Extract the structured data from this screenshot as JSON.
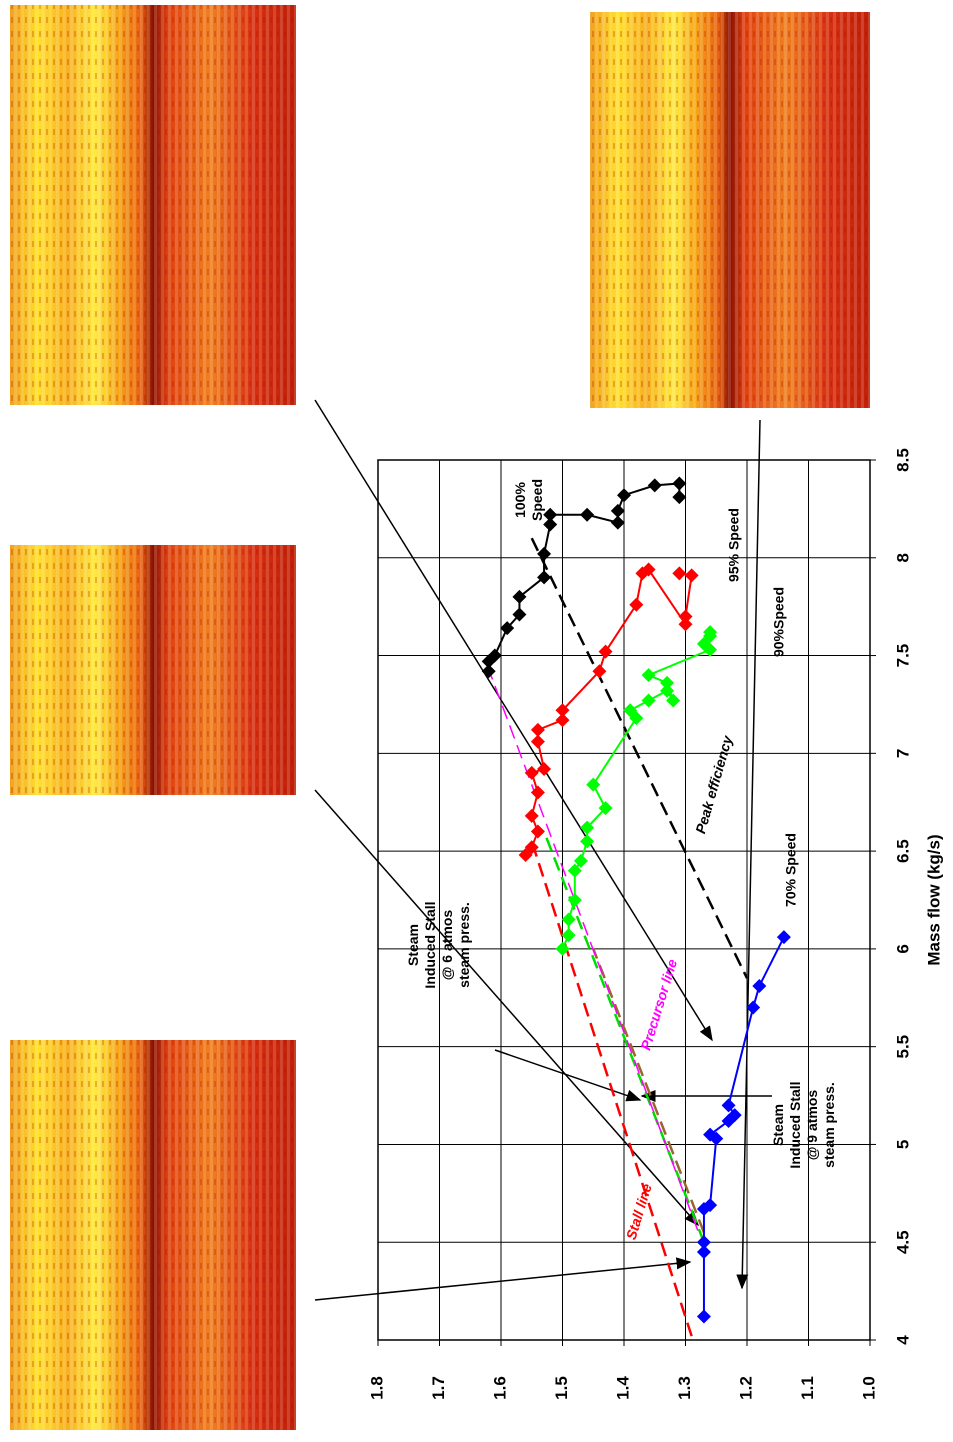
{
  "chart_data": {
    "type": "scatter",
    "x_label": "Mass flow (kg/s)",
    "xlim": [
      4,
      8.5
    ],
    "xticks": [
      4,
      4.5,
      5,
      5.5,
      6,
      6.5,
      7,
      7.5,
      8,
      8.5
    ],
    "ylim": [
      1.0,
      1.8
    ],
    "yticks": [
      {
        "value": 1.0,
        "label": "1.0"
      },
      1.1,
      1.2,
      1.3,
      1.4,
      1.5,
      1.6,
      1.7,
      1.8
    ],
    "grid": true,
    "series": [
      {
        "color": "#000000",
        "x": [
          7.42,
          7.47,
          7.5,
          7.64,
          7.71,
          7.8,
          7.9,
          8.02,
          8.17,
          8.22,
          8.22,
          8.18,
          8.24,
          8.32,
          8.37,
          8.38,
          8.31
        ],
        "values": [
          1.62,
          1.62,
          1.61,
          1.59,
          1.57,
          1.57,
          1.53,
          1.53,
          1.52,
          1.52,
          1.46,
          1.41,
          1.41,
          1.4,
          1.35,
          1.31,
          1.31
        ]
      },
      {
        "color": "#ff0000",
        "x": [
          6.48,
          6.52,
          6.6,
          6.68,
          6.8,
          6.9,
          6.92,
          7.06,
          7.12,
          7.17,
          7.22,
          7.42,
          7.52,
          7.76,
          7.92,
          7.94,
          7.66,
          7.7,
          7.91,
          7.92
        ],
        "values": [
          1.56,
          1.55,
          1.54,
          1.55,
          1.54,
          1.55,
          1.53,
          1.54,
          1.54,
          1.5,
          1.5,
          1.44,
          1.43,
          1.38,
          1.37,
          1.36,
          1.3,
          1.3,
          1.29,
          1.31
        ]
      },
      {
        "color": "#00ff00",
        "x": [
          6.0,
          6.07,
          6.15,
          6.25,
          6.4,
          6.45,
          6.55,
          6.62,
          6.72,
          6.84,
          7.18,
          7.22,
          7.27,
          7.32,
          7.27,
          7.36,
          7.4,
          7.53,
          7.56,
          7.6,
          7.62
        ],
        "values": [
          1.5,
          1.49,
          1.49,
          1.48,
          1.48,
          1.47,
          1.46,
          1.46,
          1.43,
          1.45,
          1.38,
          1.39,
          1.36,
          1.33,
          1.32,
          1.33,
          1.36,
          1.26,
          1.27,
          1.26,
          1.26
        ]
      },
      {
        "color": "#0000ff",
        "x": [
          4.12,
          4.45,
          4.5,
          4.67,
          4.69,
          5.03,
          5.05,
          5.12,
          5.15,
          5.2,
          5.7,
          5.81,
          6.06
        ],
        "values": [
          1.27,
          1.27,
          1.27,
          1.27,
          1.26,
          1.25,
          1.26,
          1.23,
          1.22,
          1.23,
          1.19,
          1.18,
          1.14
        ]
      }
    ],
    "reference_lines": [
      {
        "color": "#ff0000",
        "x": [
          4.02,
          6.55
        ],
        "values": [
          1.29,
          1.55
        ]
      },
      {
        "color": "#00dd00",
        "x": [
          4.5,
          6.6
        ],
        "values": [
          1.27,
          1.53
        ]
      },
      {
        "color": "#996633",
        "x": [
          4.55,
          6.0
        ],
        "values": [
          1.27,
          1.45
        ]
      },
      {
        "color": "#ff00ff",
        "x": [
          4.56,
          7.43
        ],
        "values": [
          1.28,
          1.62
        ]
      },
      {
        "color": "#000000",
        "x": [
          8.1,
          5.85
        ],
        "values": [
          1.55,
          1.2
        ]
      }
    ],
    "annotations": [
      {
        "lines": [
          "100%",
          "Speed"
        ],
        "color": "#000000"
      },
      {
        "lines": [
          "95% Speed"
        ],
        "color": "#000000"
      },
      {
        "lines": [
          "90%Speed"
        ],
        "color": "#000000"
      },
      {
        "lines": [
          "70% Speed"
        ],
        "color": "#000000"
      },
      {
        "lines": [
          "Steam",
          "Induced Stall",
          "@ 6 atmos",
          "steam press."
        ],
        "color": "#000000"
      },
      {
        "lines": [
          "Steam",
          "Induced Stall",
          "@ 9 atmos",
          "steam press."
        ],
        "color": "#000000"
      },
      {
        "lines": [
          "Stall line"
        ],
        "color": "#ff0000"
      },
      {
        "lines": [
          "Precursor line"
        ],
        "color": "#ff00ff"
      },
      {
        "lines": [
          "Peak efficiency"
        ],
        "color": "#000000"
      }
    ]
  }
}
